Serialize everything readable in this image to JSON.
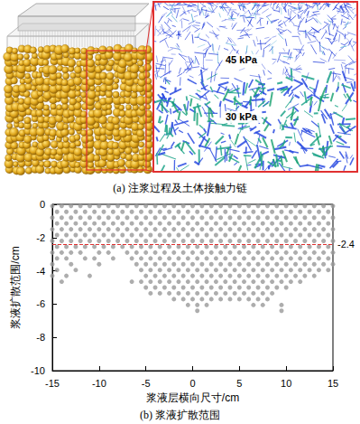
{
  "figure": {
    "panel_a": {
      "caption": "(a) 注浆过程及土体接触力链",
      "annotations": [
        "45 kPa",
        "30 kPa"
      ]
    },
    "panel_b": {
      "caption": "(b) 浆液扩散范围"
    }
  },
  "chart_data": {
    "type": "scatter",
    "x_label": "浆液层横向尺寸/cm",
    "y_label": "浆液扩散范围/cm",
    "color": "#999999",
    "marker": "circle",
    "grid": false,
    "xlim": [
      -15,
      15
    ],
    "xticks": [
      -15,
      -10,
      -5,
      0,
      5,
      10,
      15
    ],
    "ylim": [
      -10,
      0
    ],
    "yticks": [
      -10,
      -8,
      -6,
      -4,
      -2,
      0
    ],
    "hline": {
      "y": -2.4,
      "label": "-2.4",
      "color": "#e03030",
      "line_style": "dashed"
    },
    "points": [
      [
        -15,
        -0.1
      ],
      [
        -14,
        -0.1
      ],
      [
        -13,
        -0.1
      ],
      [
        -12,
        -0.1
      ],
      [
        -11,
        -0.1
      ],
      [
        -10,
        -0.1
      ],
      [
        -9,
        -0.1
      ],
      [
        -8,
        -0.1
      ],
      [
        -7,
        -0.1
      ],
      [
        -6,
        -0.1
      ],
      [
        -5,
        -0.1
      ],
      [
        -4,
        -0.1
      ],
      [
        -3,
        -0.1
      ],
      [
        -2,
        -0.1
      ],
      [
        -1,
        -0.1
      ],
      [
        0,
        -0.1
      ],
      [
        1,
        -0.1
      ],
      [
        2,
        -0.1
      ],
      [
        3,
        -0.1
      ],
      [
        4,
        -0.1
      ],
      [
        5,
        -0.1
      ],
      [
        6,
        -0.1
      ],
      [
        7,
        -0.1
      ],
      [
        8,
        -0.1
      ],
      [
        9,
        -0.1
      ],
      [
        10,
        -0.1
      ],
      [
        11,
        -0.1
      ],
      [
        12,
        -0.1
      ],
      [
        13,
        -0.1
      ],
      [
        14,
        -0.1
      ],
      [
        15,
        -0.1
      ],
      [
        -14.5,
        -0.45
      ],
      [
        -13.5,
        -0.45
      ],
      [
        -12.5,
        -0.45
      ],
      [
        -11.5,
        -0.45
      ],
      [
        -10.5,
        -0.45
      ],
      [
        -9.5,
        -0.45
      ],
      [
        -8.5,
        -0.45
      ],
      [
        -7.5,
        -0.45
      ],
      [
        -6.5,
        -0.45
      ],
      [
        -5.5,
        -0.45
      ],
      [
        -4.5,
        -0.45
      ],
      [
        -3.5,
        -0.45
      ],
      [
        -2.5,
        -0.45
      ],
      [
        -1.5,
        -0.45
      ],
      [
        -0.5,
        -0.45
      ],
      [
        0.5,
        -0.45
      ],
      [
        1.5,
        -0.45
      ],
      [
        2.5,
        -0.45
      ],
      [
        3.5,
        -0.45
      ],
      [
        4.5,
        -0.45
      ],
      [
        5.5,
        -0.45
      ],
      [
        6.5,
        -0.45
      ],
      [
        7.5,
        -0.45
      ],
      [
        8.5,
        -0.45
      ],
      [
        9.5,
        -0.45
      ],
      [
        10.5,
        -0.45
      ],
      [
        11.5,
        -0.45
      ],
      [
        12.5,
        -0.45
      ],
      [
        13.5,
        -0.45
      ],
      [
        14.5,
        -0.45
      ],
      [
        -15,
        -0.8
      ],
      [
        -14,
        -0.8
      ],
      [
        -13,
        -0.8
      ],
      [
        -12,
        -0.8
      ],
      [
        -11,
        -0.8
      ],
      [
        -10,
        -0.8
      ],
      [
        -9,
        -0.8
      ],
      [
        -8,
        -0.8
      ],
      [
        -7,
        -0.8
      ],
      [
        -6,
        -0.8
      ],
      [
        -5,
        -0.8
      ],
      [
        -4,
        -0.8
      ],
      [
        -3,
        -0.8
      ],
      [
        -2,
        -0.8
      ],
      [
        -1,
        -0.8
      ],
      [
        0,
        -0.8
      ],
      [
        1,
        -0.8
      ],
      [
        2,
        -0.8
      ],
      [
        3,
        -0.8
      ],
      [
        4,
        -0.8
      ],
      [
        5,
        -0.8
      ],
      [
        6,
        -0.8
      ],
      [
        7,
        -0.8
      ],
      [
        8,
        -0.8
      ],
      [
        9,
        -0.8
      ],
      [
        10,
        -0.8
      ],
      [
        11,
        -0.8
      ],
      [
        12,
        -0.8
      ],
      [
        13,
        -0.8
      ],
      [
        14,
        -0.8
      ],
      [
        15,
        -0.8
      ],
      [
        -14.5,
        -1.15
      ],
      [
        -13.5,
        -1.15
      ],
      [
        -12.5,
        -1.15
      ],
      [
        -11.5,
        -1.15
      ],
      [
        -10.5,
        -1.15
      ],
      [
        -9.5,
        -1.15
      ],
      [
        -8.5,
        -1.15
      ],
      [
        -7.5,
        -1.15
      ],
      [
        -6.5,
        -1.15
      ],
      [
        -5.5,
        -1.15
      ],
      [
        -4.5,
        -1.15
      ],
      [
        -3.5,
        -1.15
      ],
      [
        -2.5,
        -1.15
      ],
      [
        -1.5,
        -1.15
      ],
      [
        -0.5,
        -1.15
      ],
      [
        0.5,
        -1.15
      ],
      [
        1.5,
        -1.15
      ],
      [
        2.5,
        -1.15
      ],
      [
        3.5,
        -1.15
      ],
      [
        4.5,
        -1.15
      ],
      [
        5.5,
        -1.15
      ],
      [
        6.5,
        -1.15
      ],
      [
        7.5,
        -1.15
      ],
      [
        8.5,
        -1.15
      ],
      [
        9.5,
        -1.15
      ],
      [
        10.5,
        -1.15
      ],
      [
        11.5,
        -1.15
      ],
      [
        12.5,
        -1.15
      ],
      [
        13.5,
        -1.15
      ],
      [
        14.5,
        -1.15
      ],
      [
        -15,
        -1.5
      ],
      [
        -14,
        -1.5
      ],
      [
        -13,
        -1.5
      ],
      [
        -12,
        -1.5
      ],
      [
        -11,
        -1.5
      ],
      [
        -10,
        -1.5
      ],
      [
        -9,
        -1.5
      ],
      [
        -8,
        -1.5
      ],
      [
        -7,
        -1.5
      ],
      [
        -6,
        -1.5
      ],
      [
        -5,
        -1.5
      ],
      [
        -4,
        -1.5
      ],
      [
        -3,
        -1.5
      ],
      [
        -2,
        -1.5
      ],
      [
        -1,
        -1.5
      ],
      [
        0,
        -1.5
      ],
      [
        1,
        -1.5
      ],
      [
        2,
        -1.5
      ],
      [
        3,
        -1.5
      ],
      [
        4,
        -1.5
      ],
      [
        5,
        -1.5
      ],
      [
        6,
        -1.5
      ],
      [
        7,
        -1.5
      ],
      [
        8,
        -1.5
      ],
      [
        9,
        -1.5
      ],
      [
        10,
        -1.5
      ],
      [
        11,
        -1.5
      ],
      [
        12,
        -1.5
      ],
      [
        13,
        -1.5
      ],
      [
        14,
        -1.5
      ],
      [
        15,
        -1.5
      ],
      [
        -14.5,
        -1.85
      ],
      [
        -13.5,
        -1.85
      ],
      [
        -12.5,
        -1.85
      ],
      [
        -11.5,
        -1.85
      ],
      [
        -10.5,
        -1.85
      ],
      [
        -9.5,
        -1.85
      ],
      [
        -8.5,
        -1.85
      ],
      [
        -7.5,
        -1.85
      ],
      [
        -6.5,
        -1.85
      ],
      [
        -5.5,
        -1.85
      ],
      [
        -4.5,
        -1.85
      ],
      [
        -3.5,
        -1.85
      ],
      [
        -2.5,
        -1.85
      ],
      [
        -1.5,
        -1.85
      ],
      [
        -0.5,
        -1.85
      ],
      [
        0.5,
        -1.85
      ],
      [
        1.5,
        -1.85
      ],
      [
        2.5,
        -1.85
      ],
      [
        3.5,
        -1.85
      ],
      [
        4.5,
        -1.85
      ],
      [
        5.5,
        -1.85
      ],
      [
        6.5,
        -1.85
      ],
      [
        7.5,
        -1.85
      ],
      [
        8.5,
        -1.85
      ],
      [
        9.5,
        -1.85
      ],
      [
        10.5,
        -1.85
      ],
      [
        11.5,
        -1.85
      ],
      [
        12.5,
        -1.85
      ],
      [
        13.5,
        -1.85
      ],
      [
        14.5,
        -1.85
      ],
      [
        -15,
        -2.2
      ],
      [
        -14,
        -2.2
      ],
      [
        -13,
        -2.2
      ],
      [
        -12,
        -2.2
      ],
      [
        -11,
        -2.2
      ],
      [
        -10,
        -2.2
      ],
      [
        -9,
        -2.2
      ],
      [
        -8,
        -2.2
      ],
      [
        -7,
        -2.2
      ],
      [
        -6,
        -2.2
      ],
      [
        -5,
        -2.2
      ],
      [
        -4,
        -2.2
      ],
      [
        -3,
        -2.2
      ],
      [
        -2,
        -2.2
      ],
      [
        -1,
        -2.2
      ],
      [
        0,
        -2.2
      ],
      [
        1,
        -2.2
      ],
      [
        2,
        -2.2
      ],
      [
        3,
        -2.2
      ],
      [
        4,
        -2.2
      ],
      [
        5,
        -2.2
      ],
      [
        6,
        -2.2
      ],
      [
        7,
        -2.2
      ],
      [
        8,
        -2.2
      ],
      [
        9,
        -2.2
      ],
      [
        10,
        -2.2
      ],
      [
        11,
        -2.2
      ],
      [
        12,
        -2.2
      ],
      [
        13,
        -2.2
      ],
      [
        14,
        -2.2
      ],
      [
        15,
        -2.2
      ],
      [
        -14.5,
        -2.55
      ],
      [
        -13.5,
        -2.55
      ],
      [
        -12.5,
        -2.55
      ],
      [
        -11.5,
        -2.55
      ],
      [
        -10.5,
        -2.55
      ],
      [
        -9.5,
        -2.55
      ],
      [
        -8.5,
        -2.55
      ],
      [
        -7.5,
        -2.55
      ],
      [
        -6.5,
        -2.55
      ],
      [
        -5.5,
        -2.55
      ],
      [
        -4.5,
        -2.55
      ],
      [
        -3.5,
        -2.55
      ],
      [
        -2.5,
        -2.55
      ],
      [
        -1.5,
        -2.55
      ],
      [
        -0.5,
        -2.55
      ],
      [
        0.5,
        -2.55
      ],
      [
        1.5,
        -2.55
      ],
      [
        2.5,
        -2.55
      ],
      [
        3.5,
        -2.55
      ],
      [
        4.5,
        -2.55
      ],
      [
        5.5,
        -2.55
      ],
      [
        6.5,
        -2.55
      ],
      [
        7.5,
        -2.55
      ],
      [
        8.5,
        -2.55
      ],
      [
        9.5,
        -2.55
      ],
      [
        10.5,
        -2.55
      ],
      [
        11.5,
        -2.55
      ],
      [
        12.5,
        -2.55
      ],
      [
        13.5,
        -2.55
      ],
      [
        14.5,
        -2.55
      ],
      [
        -15,
        -2.9
      ],
      [
        -14,
        -2.9
      ],
      [
        -13,
        -2.9
      ],
      [
        -12,
        -2.9
      ],
      [
        -10,
        -2.9
      ],
      [
        -9,
        -2.9
      ],
      [
        -7,
        -2.9
      ],
      [
        -6,
        -2.9
      ],
      [
        -5,
        -2.9
      ],
      [
        -4,
        -2.9
      ],
      [
        -3,
        -2.9
      ],
      [
        -2,
        -2.9
      ],
      [
        -1,
        -2.9
      ],
      [
        0,
        -2.9
      ],
      [
        1,
        -2.9
      ],
      [
        2,
        -2.9
      ],
      [
        3,
        -2.9
      ],
      [
        4,
        -2.9
      ],
      [
        5,
        -2.9
      ],
      [
        6,
        -2.9
      ],
      [
        7,
        -2.9
      ],
      [
        8,
        -2.9
      ],
      [
        9,
        -2.9
      ],
      [
        10,
        -2.9
      ],
      [
        11,
        -2.9
      ],
      [
        12,
        -2.9
      ],
      [
        13,
        -2.9
      ],
      [
        14,
        -2.9
      ],
      [
        15,
        -2.9
      ],
      [
        -14.5,
        -3.25
      ],
      [
        -13.5,
        -3.25
      ],
      [
        -11.5,
        -3.25
      ],
      [
        -10.5,
        -3.25
      ],
      [
        -8.5,
        -3.25
      ],
      [
        -6.5,
        -3.25
      ],
      [
        -5.5,
        -3.25
      ],
      [
        -4.5,
        -3.25
      ],
      [
        -3.5,
        -3.25
      ],
      [
        -2.5,
        -3.25
      ],
      [
        -1.5,
        -3.25
      ],
      [
        -0.5,
        -3.25
      ],
      [
        0.5,
        -3.25
      ],
      [
        1.5,
        -3.25
      ],
      [
        2.5,
        -3.25
      ],
      [
        3.5,
        -3.25
      ],
      [
        4.5,
        -3.25
      ],
      [
        5.5,
        -3.25
      ],
      [
        6.5,
        -3.25
      ],
      [
        7.5,
        -3.25
      ],
      [
        8.5,
        -3.25
      ],
      [
        9.5,
        -3.25
      ],
      [
        10.5,
        -3.25
      ],
      [
        11.5,
        -3.25
      ],
      [
        12.5,
        -3.25
      ],
      [
        13.5,
        -3.25
      ],
      [
        14.5,
        -3.25
      ],
      [
        -15,
        -3.6
      ],
      [
        -13,
        -3.6
      ],
      [
        -10,
        -3.6
      ],
      [
        -6,
        -3.6
      ],
      [
        -5,
        -3.6
      ],
      [
        -4,
        -3.6
      ],
      [
        -3,
        -3.6
      ],
      [
        -2,
        -3.6
      ],
      [
        -1,
        -3.6
      ],
      [
        0,
        -3.6
      ],
      [
        1,
        -3.6
      ],
      [
        2,
        -3.6
      ],
      [
        3,
        -3.6
      ],
      [
        4,
        -3.6
      ],
      [
        5,
        -3.6
      ],
      [
        6,
        -3.6
      ],
      [
        7,
        -3.6
      ],
      [
        8,
        -3.6
      ],
      [
        9,
        -3.6
      ],
      [
        10,
        -3.6
      ],
      [
        11,
        -3.6
      ],
      [
        12,
        -3.6
      ],
      [
        13,
        -3.6
      ],
      [
        14,
        -3.6
      ],
      [
        15,
        -3.6
      ],
      [
        -14.5,
        -3.95
      ],
      [
        -12.5,
        -3.95
      ],
      [
        -5.5,
        -3.95
      ],
      [
        -4.5,
        -3.95
      ],
      [
        -3.5,
        -3.95
      ],
      [
        -2.5,
        -3.95
      ],
      [
        -1.5,
        -3.95
      ],
      [
        -0.5,
        -3.95
      ],
      [
        0.5,
        -3.95
      ],
      [
        1.5,
        -3.95
      ],
      [
        2.5,
        -3.95
      ],
      [
        3.5,
        -3.95
      ],
      [
        4.5,
        -3.95
      ],
      [
        5.5,
        -3.95
      ],
      [
        6.5,
        -3.95
      ],
      [
        7.5,
        -3.95
      ],
      [
        8.5,
        -3.95
      ],
      [
        9.5,
        -3.95
      ],
      [
        10.5,
        -3.95
      ],
      [
        11.5,
        -3.95
      ],
      [
        12.5,
        -3.95
      ],
      [
        13.5,
        -3.95
      ],
      [
        14.5,
        -3.95
      ],
      [
        -15,
        -4.3
      ],
      [
        -13.5,
        -4.3
      ],
      [
        -11,
        -4.3
      ],
      [
        -5,
        -4.3
      ],
      [
        -4,
        -4.3
      ],
      [
        -3,
        -4.3
      ],
      [
        -2,
        -4.3
      ],
      [
        -1,
        -4.3
      ],
      [
        0,
        -4.3
      ],
      [
        1,
        -4.3
      ],
      [
        2,
        -4.3
      ],
      [
        3,
        -4.3
      ],
      [
        4,
        -4.3
      ],
      [
        5,
        -4.3
      ],
      [
        6,
        -4.3
      ],
      [
        7,
        -4.3
      ],
      [
        8,
        -4.3
      ],
      [
        9,
        -4.3
      ],
      [
        10,
        -4.3
      ],
      [
        11,
        -4.3
      ],
      [
        12,
        -4.3
      ],
      [
        13,
        -4.3
      ],
      [
        -14,
        -4.65
      ],
      [
        -6.5,
        -4.65
      ],
      [
        -5.5,
        -4.65
      ],
      [
        -4.5,
        -4.65
      ],
      [
        -3.5,
        -4.65
      ],
      [
        -2.5,
        -4.65
      ],
      [
        -1.5,
        -4.65
      ],
      [
        -0.5,
        -4.65
      ],
      [
        0.5,
        -4.65
      ],
      [
        1.5,
        -4.65
      ],
      [
        2.5,
        -4.65
      ],
      [
        3.5,
        -4.65
      ],
      [
        4.5,
        -4.65
      ],
      [
        5.5,
        -4.65
      ],
      [
        6.5,
        -4.65
      ],
      [
        7.5,
        -4.65
      ],
      [
        8.5,
        -4.65
      ],
      [
        9.5,
        -4.65
      ],
      [
        10.5,
        -4.65
      ],
      [
        11.5,
        -4.65
      ],
      [
        -5,
        -5.0
      ],
      [
        -4,
        -5.0
      ],
      [
        -3,
        -5.0
      ],
      [
        -2,
        -5.0
      ],
      [
        -1,
        -5.0
      ],
      [
        0,
        -5.0
      ],
      [
        1,
        -5.0
      ],
      [
        2,
        -5.0
      ],
      [
        3,
        -5.0
      ],
      [
        4,
        -5.0
      ],
      [
        5,
        -5.0
      ],
      [
        6,
        -5.0
      ],
      [
        7,
        -5.0
      ],
      [
        8,
        -5.0
      ],
      [
        9,
        -5.0
      ],
      [
        10,
        -5.0
      ],
      [
        -4.5,
        -5.35
      ],
      [
        -3.5,
        -5.35
      ],
      [
        -2.5,
        -5.35
      ],
      [
        -1.5,
        -5.35
      ],
      [
        -0.5,
        -5.35
      ],
      [
        0.5,
        -5.35
      ],
      [
        1.5,
        -5.35
      ],
      [
        2.5,
        -5.35
      ],
      [
        3.5,
        -5.35
      ],
      [
        4.5,
        -5.35
      ],
      [
        5.5,
        -5.35
      ],
      [
        6.5,
        -5.35
      ],
      [
        7.5,
        -5.35
      ],
      [
        8.5,
        -5.35
      ],
      [
        -2,
        -5.7
      ],
      [
        -1,
        -5.7
      ],
      [
        0,
        -5.7
      ],
      [
        1,
        -5.7
      ],
      [
        2,
        -5.7
      ],
      [
        3,
        -5.7
      ],
      [
        4,
        -5.7
      ],
      [
        5,
        -5.7
      ],
      [
        6,
        -5.7
      ],
      [
        7,
        -5.7
      ],
      [
        8,
        -5.7
      ],
      [
        -0.5,
        -6.05
      ],
      [
        0.5,
        -6.05
      ],
      [
        1.5,
        -6.05
      ],
      [
        6.5,
        -6.05
      ],
      [
        7.5,
        -6.05
      ],
      [
        9.5,
        -6.05
      ],
      [
        0.5,
        -6.4
      ],
      [
        9.5,
        -6.4
      ]
    ]
  }
}
